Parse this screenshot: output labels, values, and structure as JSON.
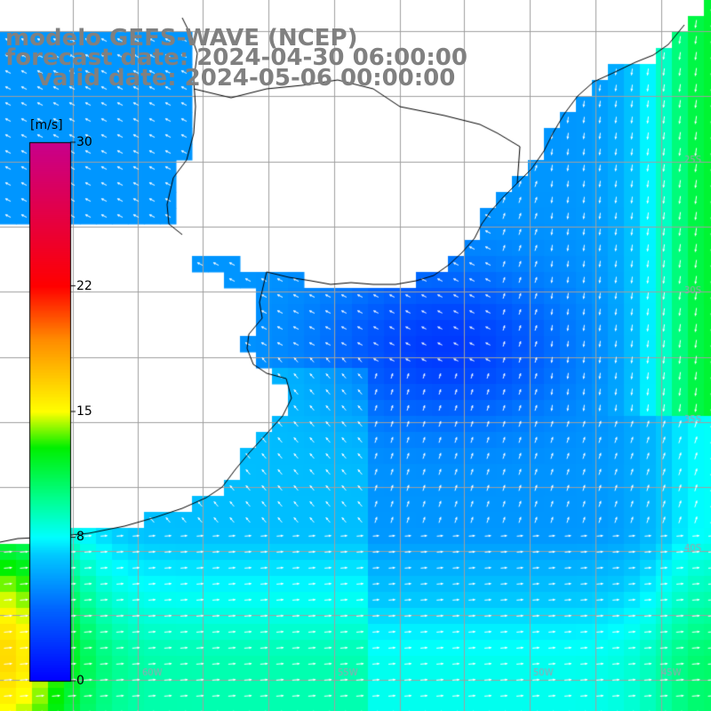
{
  "header": {
    "model": "modelo GEFS-WAVE (NCEP)",
    "forecast": "forecast date: 2024-04-30 06:00:00",
    "valid": "valid date: 2024-05-06 00:00:00"
  },
  "colorbar": {
    "unit": "[m/s]",
    "ticks": [
      {
        "value": 30,
        "label": "30"
      },
      {
        "value": 22,
        "label": "22"
      },
      {
        "value": 15,
        "label": "15"
      },
      {
        "value": 8,
        "label": "8"
      },
      {
        "value": 0,
        "label": "0"
      }
    ],
    "colors": [
      "#0000ff",
      "#00a0ff",
      "#00ffff",
      "#00ff60",
      "#40e000",
      "#ffff00",
      "#ff8000",
      "#ff0000",
      "#d00080"
    ]
  },
  "map": {
    "land_color": "#ffffff",
    "coast_color": "#000000",
    "grid_color": "#a0a0a0",
    "arrow_color": "#ffffff",
    "lat_labels": [
      "25S",
      "30S",
      "35S",
      "40S"
    ],
    "lon_labels": [
      "60W",
      "55W",
      "50W",
      "45W"
    ]
  }
}
